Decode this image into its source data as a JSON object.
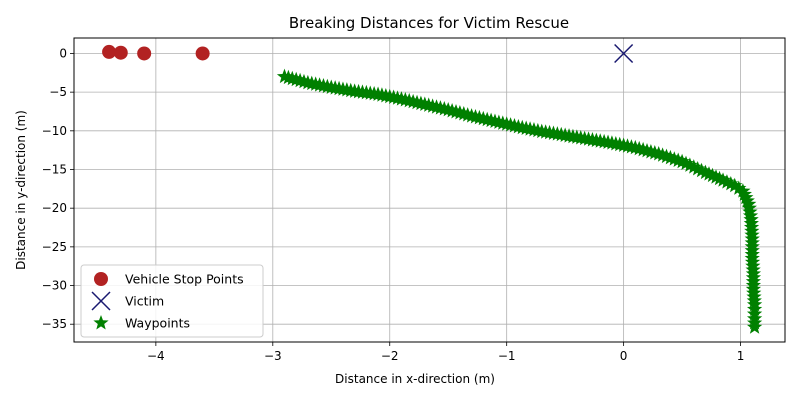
{
  "chart_data": {
    "type": "scatter",
    "title": "Breaking Distances for Victim Rescue",
    "xlabel": "Distance in x-direction (m)",
    "ylabel": "Distance in y-direction (m)",
    "xlim": [
      -4.7,
      1.38
    ],
    "ylim": [
      -37.3,
      2.0
    ],
    "xticks": [
      -4,
      -3,
      -2,
      -1,
      0,
      1
    ],
    "yticks": [
      0,
      -5,
      -10,
      -15,
      -20,
      -25,
      -30,
      -35
    ],
    "grid": true,
    "legend_position": "lower-left",
    "series": [
      {
        "name": "Vehicle Stop Points",
        "marker": "circle",
        "color": "#b22222",
        "x": [
          -4.4,
          -4.3,
          -4.1,
          -3.6
        ],
        "y": [
          0.2,
          0.1,
          0.0,
          0.0
        ]
      },
      {
        "name": "Victim",
        "marker": "x",
        "color": "#191970",
        "x": [
          0.0
        ],
        "y": [
          0.0
        ]
      },
      {
        "name": "Waypoints",
        "marker": "star",
        "color": "#008000",
        "x": [
          -2.9,
          -2.7,
          -2.5,
          -2.3,
          -2.1,
          -1.9,
          -1.7,
          -1.5,
          -1.3,
          -1.1,
          -0.9,
          -0.7,
          -0.5,
          -0.3,
          -0.1,
          0.1,
          0.3,
          0.5,
          0.7,
          0.85,
          0.95,
          1.02,
          1.07,
          1.09,
          1.1,
          1.1,
          1.11,
          1.11,
          1.12,
          1.12,
          1.12
        ],
        "y": [
          -3.0,
          -3.8,
          -4.4,
          -4.9,
          -5.3,
          -5.9,
          -6.6,
          -7.3,
          -8.1,
          -8.8,
          -9.5,
          -10.1,
          -10.6,
          -11.1,
          -11.6,
          -12.2,
          -13.0,
          -14.0,
          -15.4,
          -16.4,
          -17.1,
          -17.8,
          -19.5,
          -21.5,
          -24.0,
          -26.5,
          -28.5,
          -30.5,
          -32.5,
          -34.3,
          -35.4
        ]
      }
    ]
  }
}
